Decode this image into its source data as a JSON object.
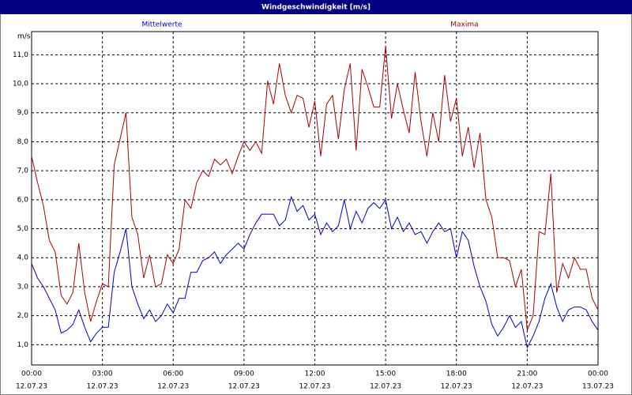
{
  "chart_data": {
    "type": "line",
    "title": "Windgeschwindigkeit [m/s]",
    "y_label": "m/s",
    "x": [
      0,
      0.25,
      0.5,
      0.75,
      1,
      1.25,
      1.5,
      1.75,
      2,
      2.25,
      2.5,
      2.75,
      3,
      3.25,
      3.5,
      3.75,
      4,
      4.25,
      4.5,
      4.75,
      5,
      5.25,
      5.5,
      5.75,
      6,
      6.25,
      6.5,
      6.75,
      7,
      7.25,
      7.5,
      7.75,
      8,
      8.25,
      8.5,
      8.75,
      9,
      9.25,
      9.5,
      9.75,
      10,
      10.25,
      10.5,
      10.75,
      11,
      11.25,
      11.5,
      11.75,
      12,
      12.25,
      12.5,
      12.75,
      13,
      13.25,
      13.5,
      13.75,
      14,
      14.25,
      14.5,
      14.75,
      15,
      15.25,
      15.5,
      15.75,
      16,
      16.25,
      16.5,
      16.75,
      17,
      17.25,
      17.5,
      17.75,
      18,
      18.25,
      18.5,
      18.75,
      19,
      19.25,
      19.5,
      19.75,
      20,
      20.25,
      20.5,
      20.75,
      21,
      21.25,
      21.5,
      21.75,
      22,
      22.25,
      22.5,
      22.75,
      23,
      23.25,
      23.5,
      23.75,
      24
    ],
    "series": [
      {
        "name": "Mittelwerte",
        "color": "#0000cc",
        "values": [
          3.8,
          3.3,
          3.0,
          2.6,
          2.2,
          1.4,
          1.5,
          1.7,
          2.2,
          1.6,
          1.1,
          1.4,
          1.6,
          1.6,
          3.5,
          4.2,
          5.0,
          3.0,
          2.4,
          1.9,
          2.2,
          1.8,
          2.0,
          2.4,
          2.1,
          2.6,
          2.6,
          3.5,
          3.5,
          3.9,
          4.0,
          4.2,
          3.8,
          4.1,
          4.3,
          4.5,
          4.3,
          4.8,
          5.2,
          5.5,
          5.5,
          5.5,
          5.1,
          5.3,
          6.1,
          5.6,
          5.8,
          5.3,
          5.5,
          4.8,
          5.2,
          4.9,
          5.1,
          6.0,
          5.0,
          5.6,
          5.2,
          5.7,
          5.9,
          5.7,
          6.0,
          5.0,
          5.4,
          4.9,
          5.2,
          4.8,
          4.9,
          4.5,
          4.9,
          5.2,
          4.9,
          5.0,
          4.0,
          4.9,
          4.6,
          3.7,
          3.0,
          2.5,
          1.7,
          1.3,
          1.6,
          2.0,
          1.6,
          1.8,
          0.9,
          1.3,
          1.8,
          2.6,
          3.1,
          2.3,
          1.8,
          2.2,
          2.3,
          2.3,
          2.2,
          1.8,
          1.5
        ]
      },
      {
        "name": "Maxima",
        "color": "#aa0000",
        "values": [
          7.5,
          6.6,
          5.8,
          4.6,
          4.2,
          2.7,
          2.4,
          2.8,
          4.5,
          2.8,
          1.8,
          2.5,
          3.1,
          3.0,
          7.2,
          8.1,
          9.0,
          5.4,
          4.8,
          3.3,
          4.1,
          3.0,
          3.1,
          4.1,
          3.8,
          4.3,
          6.0,
          5.7,
          6.6,
          7.0,
          6.8,
          7.4,
          7.2,
          7.4,
          6.9,
          7.5,
          8.0,
          7.7,
          8.0,
          7.6,
          10.1,
          9.3,
          10.7,
          9.6,
          9.0,
          9.6,
          9.5,
          8.5,
          9.4,
          7.5,
          9.3,
          9.6,
          8.1,
          9.8,
          10.7,
          7.7,
          10.5,
          9.9,
          9.2,
          9.2,
          11.3,
          8.8,
          10.0,
          9.1,
          8.3,
          10.4,
          8.7,
          7.5,
          9.0,
          8.0,
          10.3,
          8.7,
          9.5,
          7.5,
          8.5,
          7.1,
          8.3,
          6.0,
          5.4,
          4.0,
          4.0,
          3.9,
          3.0,
          3.6,
          1.5,
          2.0,
          4.9,
          4.8,
          6.9,
          2.8,
          3.8,
          3.3,
          4.0,
          3.6,
          3.6,
          2.6,
          2.2
        ]
      }
    ],
    "xlim": [
      0,
      24
    ],
    "xticks": [
      {
        "value": 0,
        "label": "00:00"
      },
      {
        "value": 3,
        "label": "03:00"
      },
      {
        "value": 6,
        "label": "06:00"
      },
      {
        "value": 9,
        "label": "09:00"
      },
      {
        "value": 12,
        "label": "12:00"
      },
      {
        "value": 15,
        "label": "15:00"
      },
      {
        "value": 18,
        "label": "18:00"
      },
      {
        "value": 21,
        "label": "21:00"
      },
      {
        "value": 24,
        "label": "00:00"
      }
    ],
    "xtick_dates": [
      "12.07.23",
      "12.07.23",
      "12.07.23",
      "12.07.23",
      "12.07.23",
      "12.07.23",
      "12.07.23",
      "12.07.23",
      "13.07.23"
    ],
    "ylim": [
      0.3,
      11.8
    ],
    "yticks": [
      {
        "value": 1,
        "label": "1,0"
      },
      {
        "value": 2,
        "label": "2,0"
      },
      {
        "value": 3,
        "label": "3,0"
      },
      {
        "value": 4,
        "label": "4,0"
      },
      {
        "value": 5,
        "label": "5,0"
      },
      {
        "value": 6,
        "label": "6,0"
      },
      {
        "value": 7,
        "label": "7,0"
      },
      {
        "value": 8,
        "label": "8,0"
      },
      {
        "value": 9,
        "label": "9,0"
      },
      {
        "value": 10,
        "label": "10,0"
      },
      {
        "value": 11,
        "label": "11,0"
      }
    ],
    "grid": true
  }
}
